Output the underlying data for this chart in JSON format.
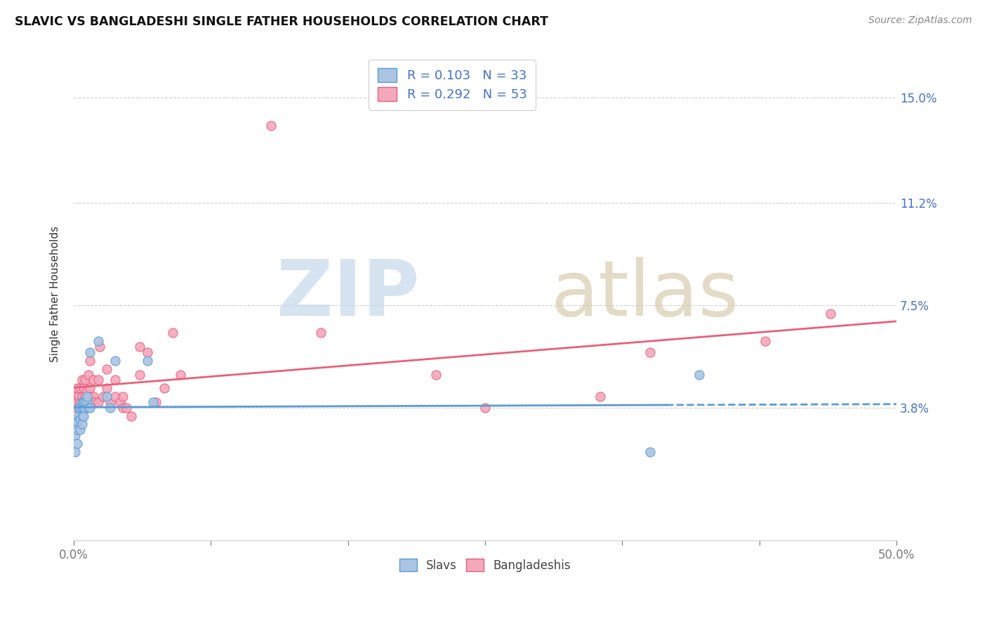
{
  "title": "SLAVIC VS BANGLADESHI SINGLE FATHER HOUSEHOLDS CORRELATION CHART",
  "source": "Source: ZipAtlas.com",
  "ylabel": "Single Father Households",
  "ytick_labels": [
    "3.8%",
    "7.5%",
    "11.2%",
    "15.0%"
  ],
  "ytick_values": [
    0.038,
    0.075,
    0.112,
    0.15
  ],
  "xlim": [
    0.0,
    0.5
  ],
  "ylim": [
    -0.01,
    0.168
  ],
  "slavic_color": "#aac4e2",
  "bangla_color": "#f4a8bc",
  "trendline_slavic_color": "#5b9bd5",
  "trendline_bangla_color": "#e8607a",
  "slavic_scatter_x": [
    0.001,
    0.001,
    0.001,
    0.002,
    0.002,
    0.002,
    0.003,
    0.003,
    0.004,
    0.004,
    0.004,
    0.005,
    0.005,
    0.005,
    0.005,
    0.006,
    0.006,
    0.006,
    0.007,
    0.007,
    0.008,
    0.008,
    0.009,
    0.01,
    0.01,
    0.015,
    0.02,
    0.022,
    0.025,
    0.045,
    0.048,
    0.35,
    0.38
  ],
  "slavic_scatter_y": [
    0.032,
    0.028,
    0.022,
    0.033,
    0.03,
    0.025,
    0.035,
    0.038,
    0.038,
    0.034,
    0.03,
    0.038,
    0.035,
    0.032,
    0.04,
    0.038,
    0.035,
    0.04,
    0.038,
    0.04,
    0.04,
    0.042,
    0.038,
    0.038,
    0.058,
    0.062,
    0.042,
    0.038,
    0.055,
    0.055,
    0.04,
    0.022,
    0.05
  ],
  "bangla_scatter_x": [
    0.001,
    0.001,
    0.002,
    0.002,
    0.003,
    0.004,
    0.004,
    0.005,
    0.005,
    0.005,
    0.006,
    0.006,
    0.007,
    0.007,
    0.008,
    0.008,
    0.009,
    0.009,
    0.01,
    0.01,
    0.01,
    0.012,
    0.012,
    0.013,
    0.015,
    0.015,
    0.016,
    0.018,
    0.02,
    0.02,
    0.022,
    0.025,
    0.025,
    0.028,
    0.03,
    0.03,
    0.032,
    0.035,
    0.04,
    0.04,
    0.045,
    0.05,
    0.055,
    0.06,
    0.065,
    0.12,
    0.15,
    0.22,
    0.25,
    0.32,
    0.35,
    0.42,
    0.46
  ],
  "bangla_scatter_y": [
    0.038,
    0.042,
    0.04,
    0.045,
    0.042,
    0.04,
    0.045,
    0.038,
    0.042,
    0.048,
    0.04,
    0.045,
    0.042,
    0.048,
    0.04,
    0.044,
    0.042,
    0.05,
    0.042,
    0.045,
    0.055,
    0.042,
    0.048,
    0.04,
    0.04,
    0.048,
    0.06,
    0.042,
    0.045,
    0.052,
    0.04,
    0.042,
    0.048,
    0.04,
    0.038,
    0.042,
    0.038,
    0.035,
    0.06,
    0.05,
    0.058,
    0.04,
    0.045,
    0.065,
    0.05,
    0.14,
    0.065,
    0.05,
    0.038,
    0.042,
    0.058,
    0.062,
    0.072
  ],
  "background_color": "#ffffff",
  "grid_color": "#d0d0d0"
}
